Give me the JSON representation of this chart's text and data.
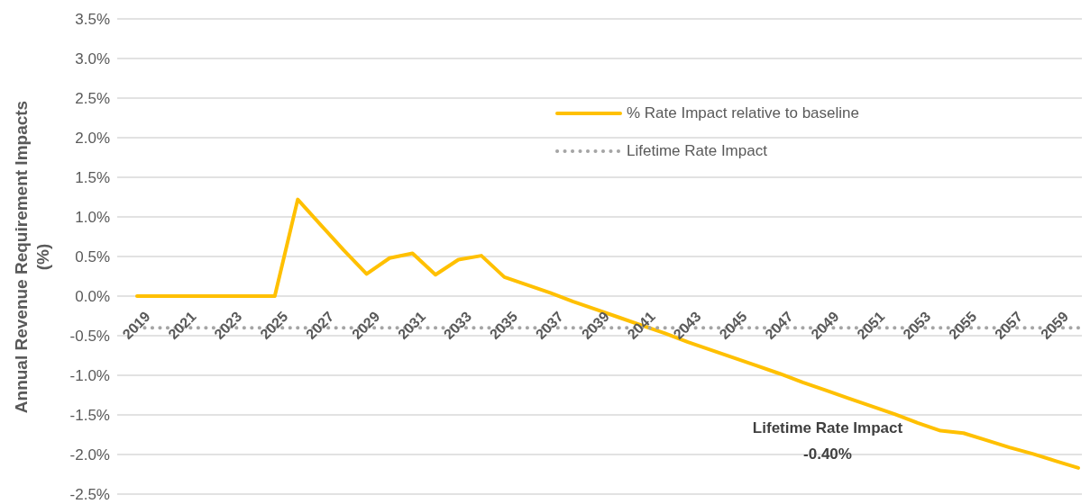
{
  "chart_data": {
    "type": "line",
    "ylabel": "Annual Revenue Requirement Impacts (%)",
    "categories": [
      "2019",
      null,
      "2021",
      null,
      "2023",
      null,
      "2025",
      null,
      "2027",
      null,
      "2029",
      null,
      "2031",
      null,
      "2033",
      null,
      "2035",
      null,
      "2037",
      null,
      "2039",
      null,
      "2041",
      null,
      "2043",
      null,
      "2045",
      null,
      "2047",
      null,
      "2049",
      null,
      "2051",
      null,
      "2053",
      null,
      "2055",
      null,
      "2057",
      null,
      "2059",
      null
    ],
    "series": [
      {
        "name": "% Rate Impact relative to baseline",
        "color": "#ffc000",
        "line_style": "solid",
        "values": [
          0,
          0,
          0,
          0,
          0,
          0,
          0,
          1.22,
          0.9,
          0.58,
          0.28,
          0.48,
          0.54,
          0.27,
          0.46,
          0.51,
          0.24,
          0.14,
          0.04,
          -0.07,
          -0.17,
          -0.27,
          -0.37,
          -0.47,
          -0.58,
          -0.68,
          -0.78,
          -0.88,
          -0.98,
          -1.09,
          -1.19,
          -1.29,
          -1.39,
          -1.49,
          -1.6,
          -1.7,
          -1.73,
          -1.82,
          -1.91,
          -1.99,
          -2.08,
          -2.17
        ]
      },
      {
        "name": "Lifetime Rate Impact",
        "color": "#a5a5a5",
        "line_style": "dotted",
        "values": [
          -0.4,
          -0.4,
          -0.4,
          -0.4,
          -0.4,
          -0.4,
          -0.4,
          -0.4,
          -0.4,
          -0.4,
          -0.4,
          -0.4,
          -0.4,
          -0.4,
          -0.4,
          -0.4,
          -0.4,
          -0.4,
          -0.4,
          -0.4,
          -0.4,
          -0.4,
          -0.4,
          -0.4,
          -0.4,
          -0.4,
          -0.4,
          -0.4,
          -0.4,
          -0.4,
          -0.4,
          -0.4,
          -0.4,
          -0.4,
          -0.4,
          -0.4,
          -0.4,
          -0.4,
          -0.4,
          -0.4,
          -0.4,
          -0.4
        ]
      }
    ],
    "ylim": [
      -2.5,
      3.5
    ],
    "yticks": [
      {
        "value": -2.5,
        "label": "-2.5%"
      },
      {
        "value": -2,
        "label": "-2.0%"
      },
      {
        "value": -1.5,
        "label": "-1.5%"
      },
      {
        "value": -1,
        "label": "-1.0%"
      },
      {
        "value": -0.5,
        "label": "-0.5%"
      },
      {
        "value": 0,
        "label": "0.0%"
      },
      {
        "value": 0.5,
        "label": "0.5%"
      },
      {
        "value": 1,
        "label": "1.0%"
      },
      {
        "value": 1.5,
        "label": "1.5%"
      },
      {
        "value": 2,
        "label": "2.0%"
      },
      {
        "value": 2.5,
        "label": "2.5%"
      },
      {
        "value": 3,
        "label": "3.0%"
      },
      {
        "value": 3.5,
        "label": "3.5%"
      }
    ],
    "grid": "y",
    "legend": "top right",
    "marker": "none",
    "annotations": [
      "Lifetime Rate Impact",
      "-0.40%"
    ]
  }
}
